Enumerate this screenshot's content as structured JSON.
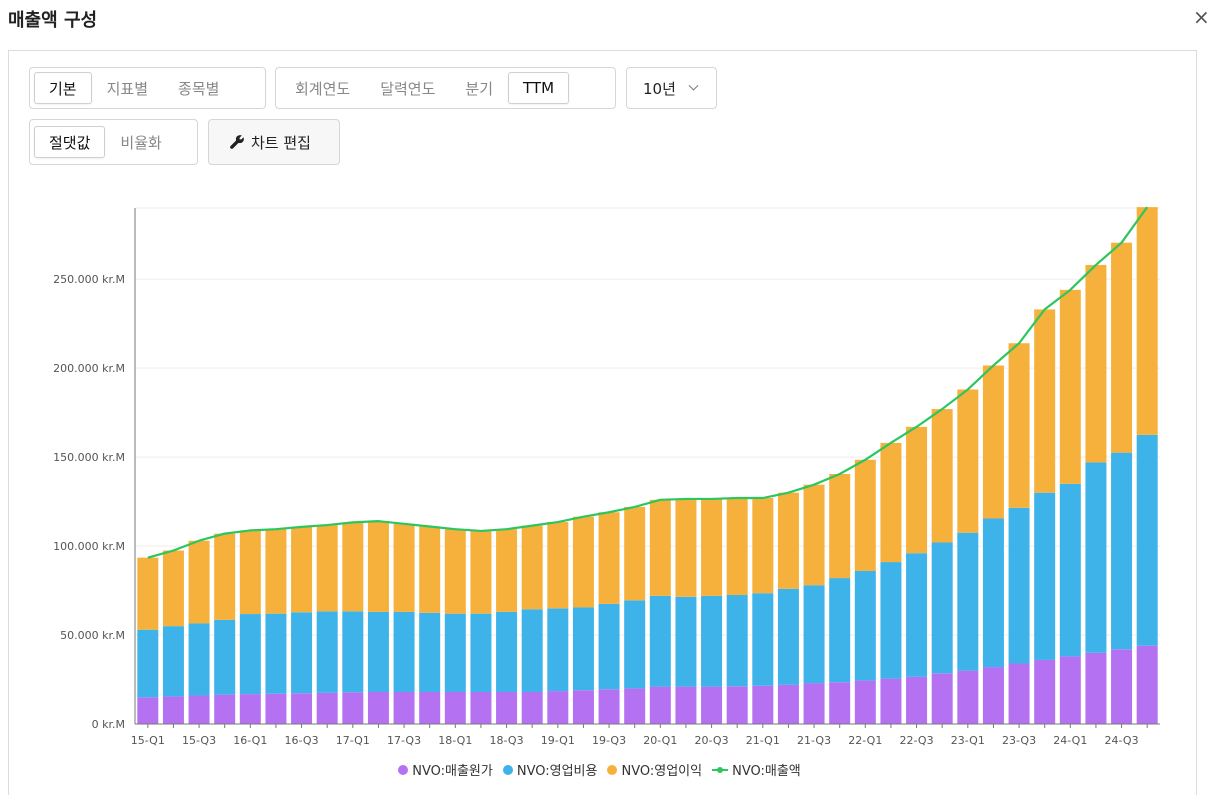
{
  "header": {
    "title": "매출액 구성",
    "close_label": "×"
  },
  "toolbar": {
    "view_tabs": [
      "기본",
      "지표별",
      "종목별"
    ],
    "period_tabs": [
      "회계연도",
      "달력연도",
      "분기",
      "TTM"
    ],
    "range_select": "10년",
    "value_tabs": [
      "절댓값",
      "비율화"
    ],
    "edit_button": "차트 편집"
  },
  "colors": {
    "cogs": "#b472f2",
    "opex": "#3db3ea",
    "op_income": "#f6b13d",
    "revenue": "#2dc55e"
  },
  "chart_data": {
    "type": "bar",
    "stacked": true,
    "ylim": [
      0,
      290000
    ],
    "yticks": [
      0,
      50000,
      100000,
      150000,
      200000,
      250000
    ],
    "ytick_labels": [
      "0 kr.M",
      "50.000 kr.M",
      "100.000 kr.M",
      "150.000 kr.M",
      "200.000 kr.M",
      "250.000 kr.M"
    ],
    "categories": [
      "15-Q1",
      "15-Q2",
      "15-Q3",
      "15-Q4",
      "16-Q1",
      "16-Q2",
      "16-Q3",
      "16-Q4",
      "17-Q1",
      "17-Q2",
      "17-Q3",
      "17-Q4",
      "18-Q1",
      "18-Q2",
      "18-Q3",
      "18-Q4",
      "19-Q1",
      "19-Q2",
      "19-Q3",
      "19-Q4",
      "20-Q1",
      "20-Q2",
      "20-Q3",
      "20-Q4",
      "21-Q1",
      "21-Q2",
      "21-Q3",
      "21-Q4",
      "22-Q1",
      "22-Q2",
      "22-Q3",
      "22-Q4",
      "23-Q1",
      "23-Q2",
      "23-Q3",
      "23-Q4",
      "24-Q1",
      "24-Q2",
      "24-Q3",
      "24-Q4"
    ],
    "xtick_labels": [
      "15-Q1",
      "",
      "15-Q3",
      "",
      "16-Q1",
      "",
      "16-Q3",
      "",
      "17-Q1",
      "",
      "17-Q3",
      "",
      "18-Q1",
      "",
      "18-Q3",
      "",
      "19-Q1",
      "",
      "19-Q3",
      "",
      "20-Q1",
      "",
      "20-Q3",
      "",
      "21-Q1",
      "",
      "21-Q3",
      "",
      "22-Q1",
      "",
      "22-Q3",
      "",
      "23-Q1",
      "",
      "23-Q3",
      "",
      "24-Q1",
      "",
      "24-Q3",
      ""
    ],
    "series": [
      {
        "name": "NVO:매출원가",
        "key": "cogs",
        "values": [
          15000,
          15500,
          16000,
          16500,
          16800,
          17000,
          17300,
          17500,
          17800,
          18000,
          18000,
          18000,
          18000,
          18000,
          18000,
          18000,
          18500,
          19000,
          19500,
          20000,
          21000,
          21000,
          21000,
          21200,
          21500,
          22000,
          23000,
          23500,
          24500,
          25500,
          26500,
          28500,
          30000,
          32000,
          34000,
          36000,
          38000,
          40000,
          42000,
          44000
        ]
      },
      {
        "name": "NVO:영업비용",
        "key": "opex",
        "values": [
          38000,
          39500,
          40500,
          42000,
          45000,
          45000,
          45500,
          45800,
          45500,
          45000,
          45000,
          44500,
          44000,
          44000,
          45000,
          46500,
          46500,
          46500,
          48000,
          49500,
          51000,
          50500,
          51000,
          51300,
          52000,
          54000,
          55000,
          58500,
          61500,
          65500,
          69500,
          73500,
          77500,
          83500,
          87500,
          94000,
          97000,
          107000,
          110500,
          118500
        ]
      },
      {
        "name": "NVO:영업이익",
        "key": "op_income",
        "values": [
          40500,
          42500,
          46500,
          48500,
          47000,
          47500,
          48000,
          48500,
          50000,
          51000,
          49500,
          48500,
          47500,
          46500,
          46500,
          47000,
          48500,
          51000,
          51500,
          52500,
          54000,
          55000,
          54500,
          54500,
          53500,
          54000,
          56500,
          58500,
          62500,
          67000,
          71000,
          75000,
          80500,
          86000,
          92500,
          103000,
          109000,
          111000,
          118000,
          128000
        ]
      },
      {
        "name": "NVO:매출액",
        "key": "revenue",
        "type": "line",
        "values": [
          93500,
          97500,
          103000,
          107000,
          108800,
          109500,
          110800,
          111800,
          113300,
          114000,
          112500,
          111000,
          109500,
          108500,
          109500,
          111500,
          113500,
          116500,
          119000,
          122000,
          126000,
          126500,
          126500,
          127000,
          127000,
          130000,
          134500,
          140500,
          148500,
          158000,
          167000,
          177000,
          188000,
          201500,
          214000,
          233000,
          244000,
          258000,
          270500,
          290500
        ]
      }
    ],
    "legend": {
      "position": "bottom"
    }
  }
}
